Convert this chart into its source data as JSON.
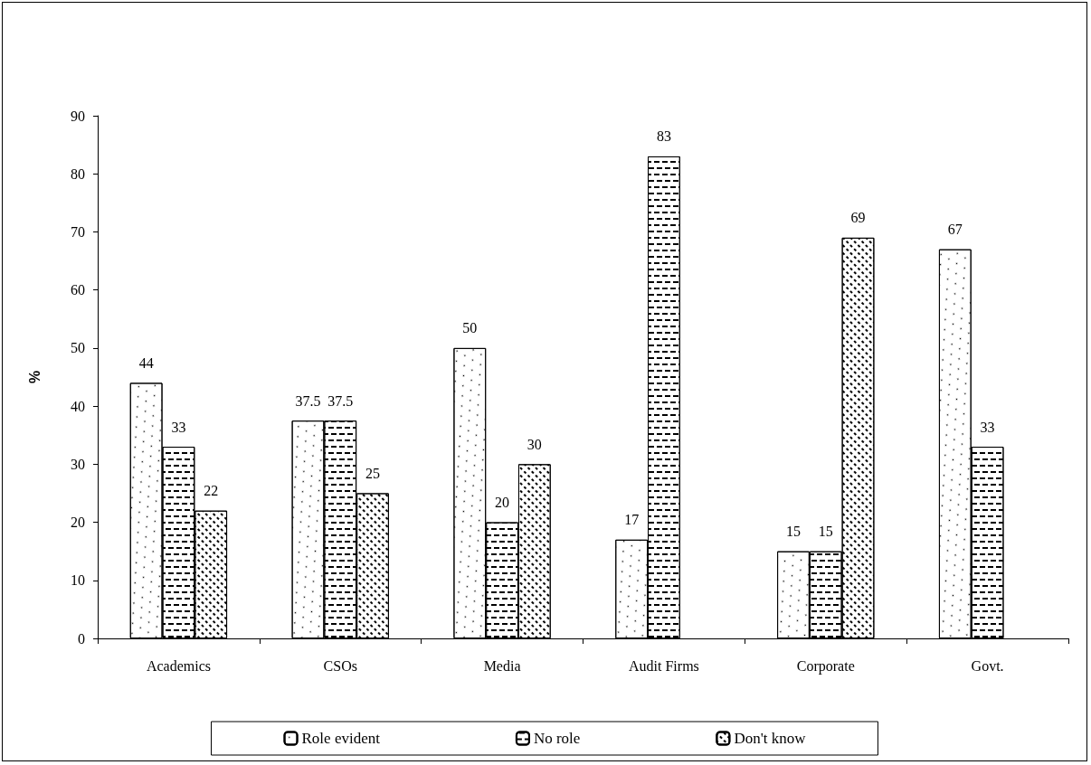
{
  "chart_data": {
    "type": "bar",
    "ylabel": "%",
    "categories": [
      "Academics",
      "CSOs",
      "Media",
      "Audit Firms",
      "Corporate",
      "Govt."
    ],
    "series": [
      {
        "name": "Role evident",
        "color": "#ffffff",
        "values": [
          44,
          37.5,
          50,
          17,
          15,
          67
        ]
      },
      {
        "name": "No role",
        "color": "#ffffff",
        "values": [
          33,
          37.5,
          20,
          83,
          15,
          33
        ]
      },
      {
        "name": "Don't know",
        "color": "#ffffff",
        "values": [
          22,
          25,
          30,
          null,
          69,
          null
        ]
      }
    ],
    "ylim": [
      0,
      90
    ],
    "yticks": [
      0,
      10,
      20,
      30,
      40,
      50,
      60,
      70,
      80,
      90
    ],
    "grid": false,
    "legend": "bottom",
    "data_labels": true
  }
}
